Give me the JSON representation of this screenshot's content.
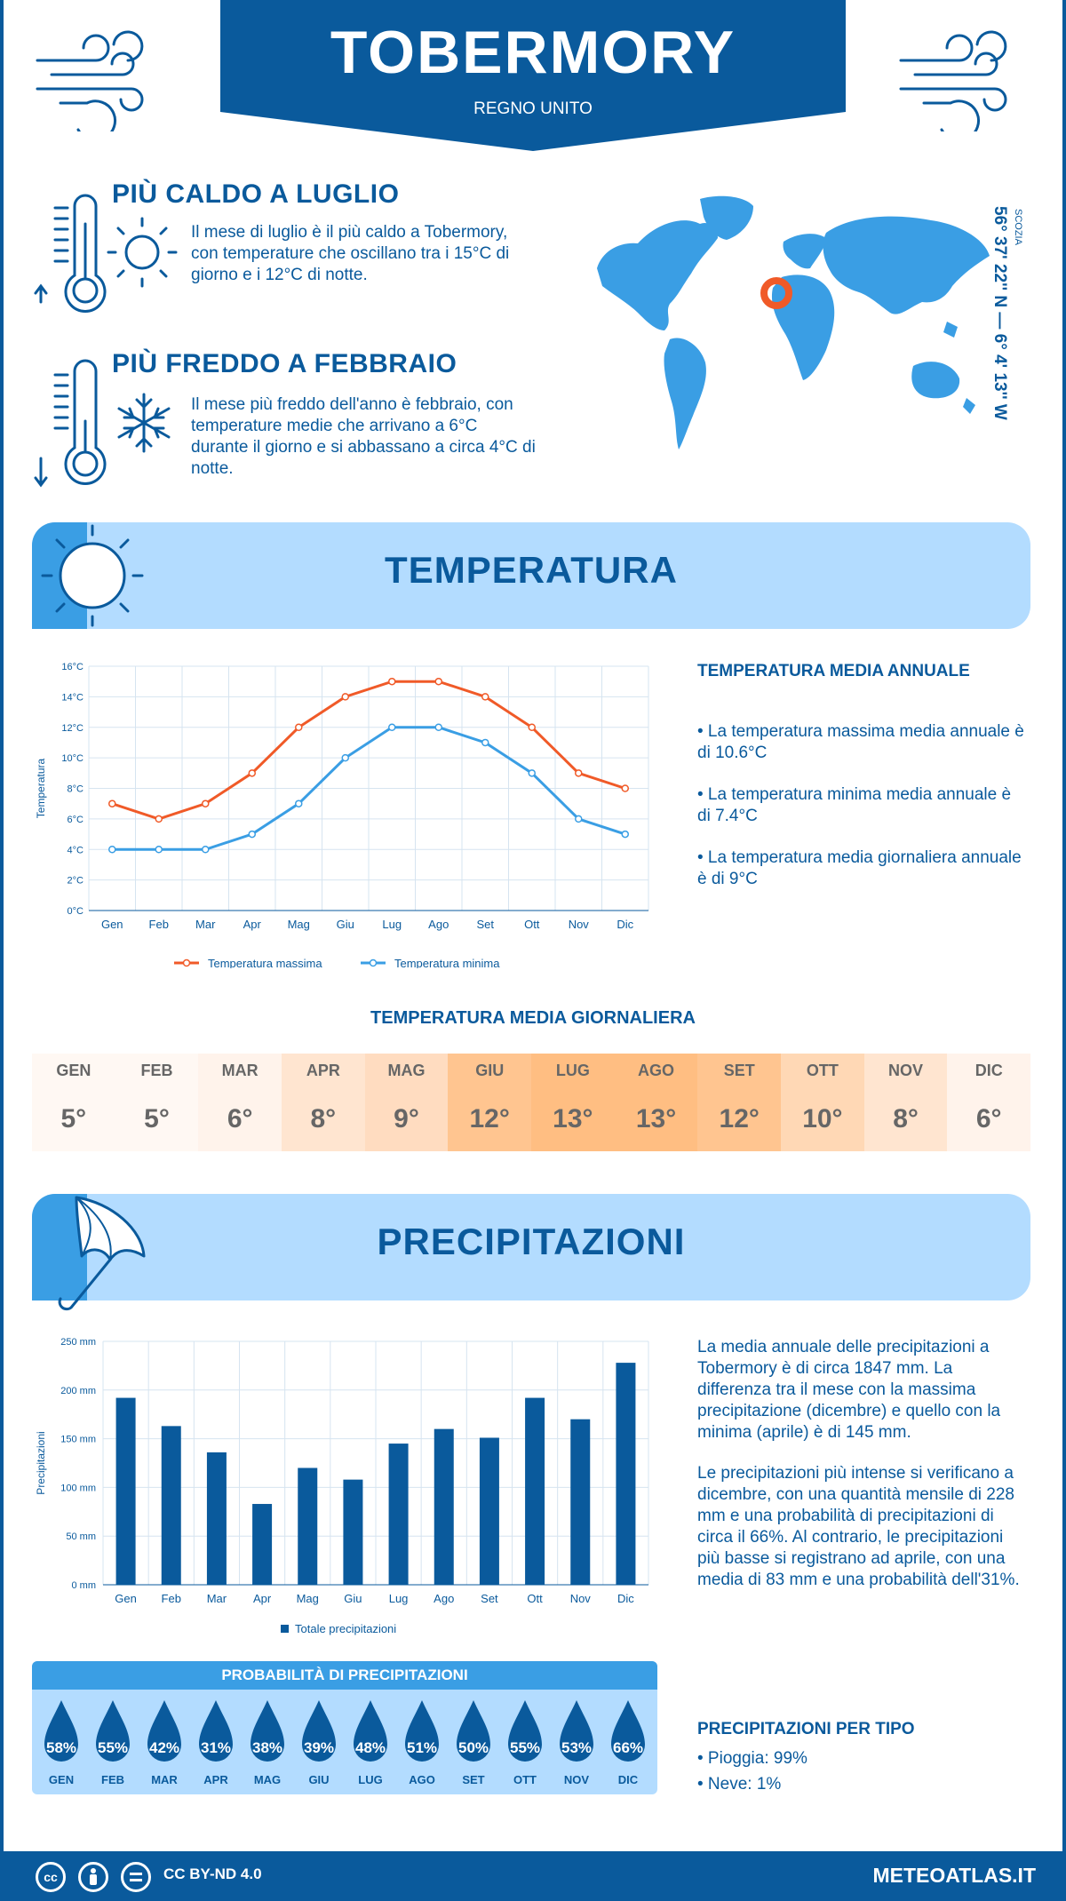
{
  "header": {
    "city": "TOBERMORY",
    "country": "REGNO UNITO"
  },
  "hot": {
    "title": "PIÙ CALDO A LUGLIO",
    "text": "Il mese di luglio è il più caldo a Tobermory, con temperature che oscillano tra i 15°C di giorno e i 12°C di notte."
  },
  "cold": {
    "title": "PIÙ FREDDO A FEBBRAIO",
    "text": "Il mese più freddo dell'anno è febbraio, con temperature medie che arrivano a 6°C durante il giorno e si abbassano a circa 4°C di notte."
  },
  "coords": {
    "main": "56° 37' 22'' N — 6° 4' 13'' W",
    "region": "SCOZIA"
  },
  "temperature": {
    "title": "TEMPERATURA",
    "annual_title": "TEMPERATURA MEDIA ANNUALE",
    "bullets": [
      "• La temperatura massima media annuale è di 10.6°C",
      "• La temperatura minima media annuale è di 7.4°C",
      "• La temperatura media giornaliera annuale è di 9°C"
    ],
    "daily_title": "TEMPERATURA MEDIA GIORNALIERA",
    "daily": [
      {
        "m": "GEN",
        "v": "5°",
        "c": "#fff8f3"
      },
      {
        "m": "FEB",
        "v": "5°",
        "c": "#fff8f3"
      },
      {
        "m": "MAR",
        "v": "6°",
        "c": "#fff3eb"
      },
      {
        "m": "APR",
        "v": "8°",
        "c": "#ffe5d0"
      },
      {
        "m": "MAG",
        "v": "9°",
        "c": "#ffdcc0"
      },
      {
        "m": "GIU",
        "v": "12°",
        "c": "#ffc590"
      },
      {
        "m": "LUG",
        "v": "13°",
        "c": "#ffbe82"
      },
      {
        "m": "AGO",
        "v": "13°",
        "c": "#ffbe82"
      },
      {
        "m": "SET",
        "v": "12°",
        "c": "#ffc590"
      },
      {
        "m": "OTT",
        "v": "10°",
        "c": "#ffd8b5"
      },
      {
        "m": "NOV",
        "v": "8°",
        "c": "#ffe5d0"
      },
      {
        "m": "DIC",
        "v": "6°",
        "c": "#fff3eb"
      }
    ]
  },
  "precipitation": {
    "title": "PRECIPITAZIONI",
    "p1": "La media annuale delle precipitazioni a Tobermory è di circa 1847 mm. La differenza tra il mese con la massima precipitazione (dicembre) e quello con la minima (aprile) è di 145 mm.",
    "p2": "Le precipitazioni più intense si verificano a dicembre, con una quantità mensile di 228 mm e una probabilità di precipitazioni di circa il 66%. Al contrario, le precipitazioni più basse si registrano ad aprile, con una media di 83 mm e una probabilità dell'31%.",
    "prob_title": "PROBABILITÀ DI PRECIPITAZIONI",
    "prob": [
      {
        "m": "GEN",
        "v": "58%"
      },
      {
        "m": "FEB",
        "v": "55%"
      },
      {
        "m": "MAR",
        "v": "42%"
      },
      {
        "m": "APR",
        "v": "31%"
      },
      {
        "m": "MAG",
        "v": "38%"
      },
      {
        "m": "GIU",
        "v": "39%"
      },
      {
        "m": "LUG",
        "v": "48%"
      },
      {
        "m": "AGO",
        "v": "51%"
      },
      {
        "m": "SET",
        "v": "50%"
      },
      {
        "m": "OTT",
        "v": "55%"
      },
      {
        "m": "NOV",
        "v": "53%"
      },
      {
        "m": "DIC",
        "v": "66%"
      }
    ],
    "type_title": "PRECIPITAZIONI PER TIPO",
    "types": [
      "• Pioggia: 99%",
      "• Neve: 1%"
    ]
  },
  "footer": {
    "license": "CC BY-ND 4.0",
    "site": "METEOATLAS.IT",
    "cc": "cc"
  },
  "colors": {
    "brand": "#0a5a9c",
    "accent_light": "#b3dcff",
    "accent": "#3a9ee4",
    "max_line": "#f05a28",
    "min_line": "#3a9ee4",
    "marker": "#f05a28"
  },
  "chart_data": [
    {
      "type": "line",
      "x": [
        "Gen",
        "Feb",
        "Mar",
        "Apr",
        "Mag",
        "Giu",
        "Lug",
        "Ago",
        "Set",
        "Ott",
        "Nov",
        "Dic"
      ],
      "series": [
        {
          "name": "Temperatura massima",
          "values": [
            7,
            6,
            7,
            9,
            12,
            14,
            15,
            15,
            14,
            12,
            9,
            8
          ]
        },
        {
          "name": "Temperatura minima",
          "values": [
            4,
            4,
            4,
            5,
            7,
            10,
            12,
            12,
            11,
            9,
            6,
            5
          ]
        }
      ],
      "ylabel": "Temperatura",
      "yticks": [
        "0°C",
        "2°C",
        "4°C",
        "6°C",
        "8°C",
        "10°C",
        "12°C",
        "14°C",
        "16°C"
      ],
      "ylim": [
        0,
        16
      ],
      "grid": true,
      "legend": "bottom"
    },
    {
      "type": "bar",
      "categories": [
        "Gen",
        "Feb",
        "Mar",
        "Apr",
        "Mag",
        "Giu",
        "Lug",
        "Ago",
        "Set",
        "Ott",
        "Nov",
        "Dic"
      ],
      "series": [
        {
          "name": "Totale precipitazioni",
          "values": [
            192,
            163,
            136,
            83,
            120,
            108,
            145,
            160,
            151,
            192,
            170,
            228
          ]
        }
      ],
      "ylabel": "Precipitazioni",
      "yticks": [
        "0 mm",
        "50 mm",
        "100 mm",
        "150 mm",
        "200 mm",
        "250 mm"
      ],
      "ylim": [
        0,
        250
      ],
      "grid": true,
      "legend": "bottom"
    }
  ]
}
